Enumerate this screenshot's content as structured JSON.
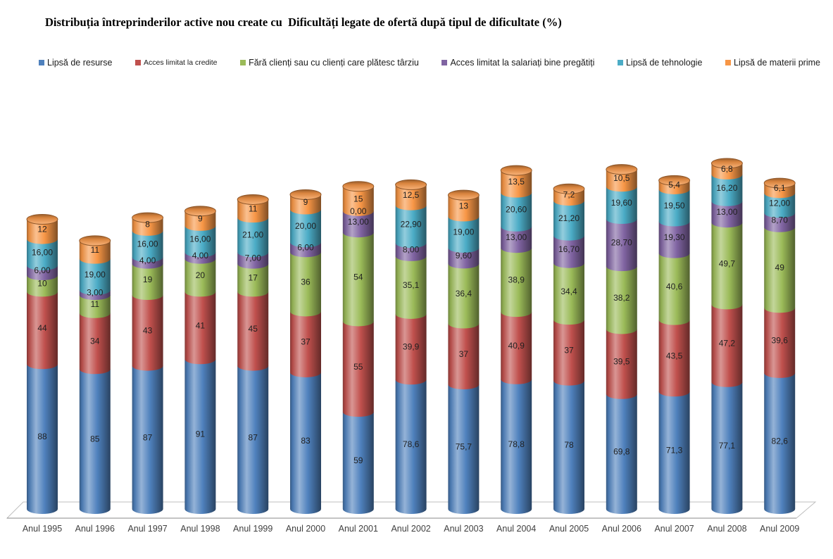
{
  "header": {
    "title": "Distribuția întreprinderilor active nou create cu  Dificultăți legate de ofertă după tipul de dificultate (%)"
  },
  "chart_data": {
    "type": "bar",
    "subtype": "stacked-cylinder-3d",
    "title": "Distribuția întreprinderilor active nou create cu  Dificultăți legate de ofertă după tipul de dificultate (%)",
    "xlabel": "",
    "ylabel": "",
    "ylim": [
      0,
      220
    ],
    "stacked": true,
    "grid": false,
    "legend_position": "top",
    "value_format": "comma-decimal",
    "categories": [
      "Anul 1995",
      "Anul 1996",
      "Anul 1997",
      "Anul 1998",
      "Anul 1999",
      "Anul 2000",
      "Anul 2001",
      "Anul 2002",
      "Anul 2003",
      "Anul 2004",
      "Anul 2005",
      "Anul 2006",
      "Anul 2007",
      "Anul 2008",
      "Anul 2009"
    ],
    "series": [
      {
        "name": "Lipsă de resurse",
        "color": "#4F81BD",
        "legend_small": false,
        "labels": [
          "88",
          "85",
          "87",
          "91",
          "87",
          "83",
          "59",
          "78,6",
          "75,7",
          "78,8",
          "78",
          "69,8",
          "71,3",
          "77,1",
          "82,6"
        ],
        "values": [
          88,
          85,
          87,
          91,
          87,
          83,
          59,
          78.6,
          75.7,
          78.8,
          78,
          69.8,
          71.3,
          77.1,
          82.6
        ]
      },
      {
        "name": "Acces limitat la credite",
        "color": "#C0504D",
        "legend_small": true,
        "labels": [
          "44",
          "34",
          "43",
          "41",
          "45",
          "37",
          "55",
          "39,9",
          "37",
          "40,9",
          "37",
          "39,5",
          "43,5",
          "47,2",
          "39,6"
        ],
        "values": [
          44,
          34,
          43,
          41,
          45,
          37,
          55,
          39.9,
          37,
          40.9,
          37,
          39.5,
          43.5,
          47.2,
          39.6
        ]
      },
      {
        "name": "Fără clienți sau cu  clienți care plătesc târziu",
        "color": "#9BBB59",
        "legend_small": false,
        "labels": [
          "10",
          "11",
          "19",
          "20",
          "17",
          "36",
          "54",
          "35,1",
          "36,4",
          "38,9",
          "34,4",
          "38,2",
          "40,6",
          "49,7",
          "49"
        ],
        "values": [
          10,
          11,
          19,
          20,
          17,
          36,
          54,
          35.1,
          36.4,
          38.9,
          34.4,
          38.2,
          40.6,
          49.7,
          49
        ]
      },
      {
        "name": "Acces limitat la salariați bine pregătiți",
        "color": "#8064A2",
        "legend_small": false,
        "labels": [
          "6,00",
          "3,00",
          "4,00",
          "4,00",
          "7,00",
          "6,00",
          "13,00",
          "8,00",
          "9,60",
          "13,00",
          "16,70",
          "28,70",
          "19,30",
          "13,00",
          "8,70"
        ],
        "values": [
          6,
          3,
          4,
          4,
          7,
          6,
          13,
          8,
          9.6,
          13,
          16.7,
          28.7,
          19.3,
          13,
          8.7
        ]
      },
      {
        "name": "Lipsă de tehnologie",
        "color": "#4BACC6",
        "legend_small": false,
        "labels": [
          "16,00",
          "19,00",
          "16,00",
          "16,00",
          "21,00",
          "20,00",
          "0,00",
          "22,90",
          "19,00",
          "20,60",
          "21,20",
          "19,60",
          "19,50",
          "16,20",
          "12,00"
        ],
        "values": [
          16,
          19,
          16,
          16,
          21,
          20,
          0,
          22.9,
          19,
          20.6,
          21.2,
          19.6,
          19.5,
          16.2,
          12
        ]
      },
      {
        "name": "Lipsă de materii prime",
        "color": "#F79646",
        "legend_small": false,
        "labels": [
          "12",
          "11",
          "8",
          "9",
          "11",
          "9",
          "15",
          "12,5",
          "13",
          "13,5",
          "7,2",
          "10,5",
          "5,4",
          "6,8",
          "6,1"
        ],
        "values": [
          12,
          11,
          8,
          9,
          11,
          9,
          15,
          12.5,
          13,
          13.5,
          7.2,
          10.5,
          5.4,
          6.8,
          6.1
        ]
      }
    ],
    "colors": {
      "data_label": "#1F1F1F",
      "category_label": "#3F3F3F",
      "floor_back_line": "#BFBFBF",
      "floor_front_line": "#898989"
    }
  }
}
